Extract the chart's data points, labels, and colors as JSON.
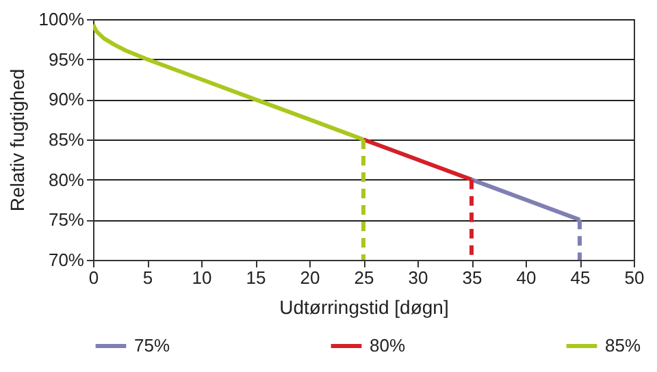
{
  "chart_data": {
    "type": "line",
    "xlabel": "Udtørringstid [døgn]",
    "ylabel": "Relativ fugtighed",
    "xlim": [
      0,
      50
    ],
    "xticks": [
      0,
      5,
      10,
      15,
      20,
      25,
      30,
      35,
      40,
      45,
      50
    ],
    "ylim": [
      70,
      100
    ],
    "yticks": [
      {
        "value": 70,
        "label": "70%"
      },
      {
        "value": 75,
        "label": "75%"
      },
      {
        "value": 80,
        "label": "80%"
      },
      {
        "value": 85,
        "label": "85%"
      },
      {
        "value": 90,
        "label": "90%"
      },
      {
        "value": 95,
        "label": "95%"
      },
      {
        "value": 100,
        "label": "100%"
      }
    ],
    "grid": "y",
    "legend": "bottom",
    "line_style": "solid",
    "series": [
      {
        "name": "75%",
        "color": "#7f7fb2",
        "x": [
          35,
          45
        ],
        "values": [
          80,
          75
        ]
      },
      {
        "name": "80%",
        "color": "#d42027",
        "x": [
          25,
          35
        ],
        "values": [
          85,
          80
        ]
      },
      {
        "name": "85%",
        "color": "#a9c81e",
        "x": [
          0,
          0.3,
          1,
          2,
          3,
          5,
          10,
          15,
          20,
          25
        ],
        "values": [
          99.3,
          98.5,
          97.6,
          96.8,
          96.1,
          95,
          92.5,
          90,
          87.5,
          85
        ]
      },
      {
        "color": "#a9c81e",
        "x": [
          25,
          25
        ],
        "values": [
          85,
          70
        ],
        "line_style": "dashed"
      },
      {
        "color": "#d42027",
        "x": [
          35,
          35
        ],
        "values": [
          80,
          70
        ],
        "line_style": "dashed"
      },
      {
        "color": "#7f7fb2",
        "x": [
          45,
          45
        ],
        "values": [
          75,
          70
        ],
        "line_style": "dashed"
      }
    ]
  }
}
